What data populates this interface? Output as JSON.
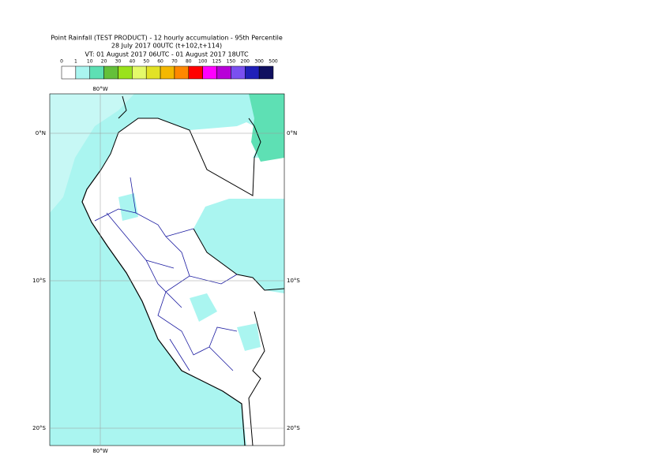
{
  "title_lines": [
    "Point Rainfall (TEST PRODUCT) - 12 hourly accumulation - 95th Percentile",
    "28 July 2017 00UTC (t+102,t+114)",
    "VT: 01 August 2017 06UTC - 01 August 2017 18UTC"
  ],
  "legend": {
    "labels": [
      0,
      1,
      10,
      20,
      30,
      40,
      50,
      60,
      70,
      80,
      100,
      125,
      150,
      200,
      300,
      500
    ],
    "colors": [
      "#ffffff",
      "#aaf5f0",
      "#5ee0b4",
      "#64c03a",
      "#9ae21c",
      "#e4fa6a",
      "#e2e226",
      "#f4b800",
      "#ff8800",
      "#ff0000",
      "#ff00ff",
      "#b800d8",
      "#7a50f0",
      "#2020b8",
      "#101060"
    ]
  },
  "grid_labels": {
    "lon_top": "80°W",
    "lon_bottom": "80°W",
    "lat_left": [
      "0°N",
      "10°S",
      "20°S"
    ],
    "lat_right": [
      "0°N",
      "10°S",
      "20°S"
    ]
  }
}
